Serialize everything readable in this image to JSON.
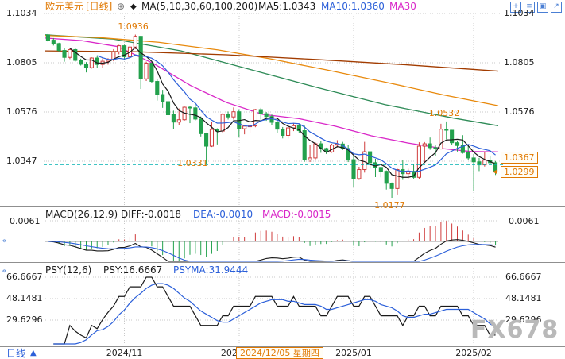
{
  "header": {
    "symbol": "欧元美元",
    "period": "[日线]",
    "ma_group": "MA(5,10,30,60,100,200)",
    "ma5": "MA5:1.0343",
    "ma10": "MA10:1.0360",
    "ma30": "MA30"
  },
  "icons": {
    "plus_circle": "⊕",
    "diamond": "◆",
    "zoom": "+",
    "list": "≡",
    "grid": "▣",
    "expand": "↗",
    "collapse": "«",
    "dropdown_up": "▲",
    "price_arrow": "◂"
  },
  "main_chart": {
    "left_axis": [
      "1.1034",
      "1.0805",
      "1.0576",
      "1.0347"
    ],
    "right_axis": [
      "1.1034",
      "1.0805",
      "1.0576"
    ],
    "badge_upper": "1.0367",
    "badge_lower": "1.0299"
  },
  "macd_panel": {
    "title": "MACD(26,12,9)",
    "diff": "DIFF:-0.0018",
    "dea": "DEA:-0.0010",
    "macd": "MACD:-0.0015",
    "axis": "0.0061"
  },
  "psy_panel": {
    "title": "PSY(12,6)",
    "psy": "PSY:16.6667",
    "psyma": "PSYMA:31.9444",
    "axis": [
      "66.6667",
      "48.1481",
      "29.6296"
    ]
  },
  "bottom": {
    "period": "日线",
    "tooltip": "2024/12/05 星期四"
  },
  "watermark": "FX678",
  "colors": {
    "up": "#cf3b3b",
    "down": "#23a14d",
    "grid": "#c9c9c9",
    "separator": "#8f8f8f",
    "ref_line": "#00b0b0",
    "orange": "#e07800",
    "blue": "#2b5fd9",
    "magenta": "#d927c8",
    "diff": "#1a1a1a",
    "dea": "#2b5fd9",
    "psy": "#1a1a1a",
    "psyma": "#2b5fd9"
  },
  "chart_data": {
    "type": "candlestick",
    "title": "欧元美元 日线 (EUR/USD Daily)",
    "price_gridlines": [
      1.1034,
      1.0805,
      1.0576,
      1.0347
    ],
    "reference_line": 1.0331,
    "last_price": 1.0299,
    "annotations": [
      {
        "text": "1.0936",
        "index": 16,
        "price": 1.0936,
        "position": "above"
      },
      {
        "text": "1.0532",
        "index": 73,
        "price": 1.0532,
        "position": "above"
      },
      {
        "text": "1.0177",
        "index": 63,
        "price": 1.0177,
        "position": "below"
      },
      {
        "text": "1.0331",
        "frac": 0.33,
        "price": 1.0331,
        "position": "line"
      }
    ],
    "x_ticks": [
      {
        "label": "2024/11",
        "index": 14
      },
      {
        "label": "2024/12",
        "index": 35
      },
      {
        "label": "2025/01",
        "index": 56
      },
      {
        "label": "2025/02",
        "index": 78
      }
    ],
    "candles": [
      [
        1.0935,
        1.094,
        1.0901,
        1.091
      ],
      [
        1.091,
        1.092,
        1.0885,
        1.0894
      ],
      [
        1.0894,
        1.0898,
        1.0855,
        1.0862
      ],
      [
        1.0862,
        1.0872,
        1.081,
        1.083
      ],
      [
        1.083,
        1.087,
        1.0822,
        1.0866
      ],
      [
        1.0866,
        1.0872,
        1.081,
        1.0816
      ],
      [
        1.0816,
        1.0824,
        1.0792,
        1.0798
      ],
      [
        1.0798,
        1.0808,
        1.076,
        1.0782
      ],
      [
        1.0782,
        1.083,
        1.0778,
        1.0827
      ],
      [
        1.0827,
        1.0839,
        1.078,
        1.0797
      ],
      [
        1.0797,
        1.0826,
        1.078,
        1.0812
      ],
      [
        1.0812,
        1.0826,
        1.0796,
        1.0818
      ],
      [
        1.0818,
        1.0868,
        1.0812,
        1.0856
      ],
      [
        1.0856,
        1.0888,
        1.0844,
        1.0884
      ],
      [
        1.0884,
        1.0888,
        1.082,
        1.0833
      ],
      [
        1.0833,
        1.0887,
        1.083,
        1.0878
      ],
      [
        1.0878,
        1.0936,
        1.0868,
        1.0928
      ],
      [
        1.0928,
        1.093,
        1.0683,
        1.073
      ],
      [
        1.073,
        1.081,
        1.072,
        1.0803
      ],
      [
        1.0803,
        1.0806,
        1.071,
        1.0718
      ],
      [
        1.0718,
        1.0728,
        1.0629,
        1.0657
      ],
      [
        1.0657,
        1.0679,
        1.0595,
        1.0624
      ],
      [
        1.0624,
        1.0655,
        1.0555,
        1.0563
      ],
      [
        1.0563,
        1.0582,
        1.0497,
        1.0529
      ],
      [
        1.0529,
        1.0592,
        1.0516,
        1.054
      ],
      [
        1.054,
        1.0601,
        1.0536,
        1.0598
      ],
      [
        1.0598,
        1.0603,
        1.0524,
        1.0595
      ],
      [
        1.0595,
        1.061,
        1.0537,
        1.0543
      ],
      [
        1.0543,
        1.0555,
        1.0462,
        1.0475
      ],
      [
        1.0475,
        1.048,
        1.0332,
        1.0417
      ],
      [
        1.0417,
        1.053,
        1.0413,
        1.0495
      ],
      [
        1.0495,
        1.05,
        1.0425,
        1.0487
      ],
      [
        1.0487,
        1.057,
        1.048,
        1.0565
      ],
      [
        1.0565,
        1.0578,
        1.0541,
        1.0553
      ],
      [
        1.0553,
        1.0597,
        1.0541,
        1.0577
      ],
      [
        1.0577,
        1.0588,
        1.0461,
        1.0498
      ],
      [
        1.0498,
        1.0514,
        1.0472,
        1.051
      ],
      [
        1.051,
        1.0544,
        1.0479,
        1.0511
      ],
      [
        1.0511,
        1.059,
        1.0505,
        1.0587
      ],
      [
        1.0587,
        1.0595,
        1.0541,
        1.0568
      ],
      [
        1.0568,
        1.0576,
        1.0535,
        1.0555
      ],
      [
        1.0555,
        1.0564,
        1.0516,
        1.0528
      ],
      [
        1.0528,
        1.0539,
        1.048,
        1.0496
      ],
      [
        1.0496,
        1.0506,
        1.0453,
        1.0467
      ],
      [
        1.0467,
        1.0514,
        1.0452,
        1.0502
      ],
      [
        1.0502,
        1.0525,
        1.0487,
        1.0512
      ],
      [
        1.0512,
        1.0521,
        1.048,
        1.0489
      ],
      [
        1.0489,
        1.0512,
        1.0344,
        1.0353
      ],
      [
        1.0353,
        1.0422,
        1.0343,
        1.0362
      ],
      [
        1.0362,
        1.0434,
        1.0355,
        1.0428
      ],
      [
        1.0428,
        1.044,
        1.0386,
        1.0406
      ],
      [
        1.0406,
        1.041,
        1.038,
        1.039
      ],
      [
        1.039,
        1.0428,
        1.0386,
        1.0422
      ],
      [
        1.0422,
        1.0445,
        1.0411,
        1.0427
      ],
      [
        1.0427,
        1.0437,
        1.0399,
        1.0406
      ],
      [
        1.0406,
        1.0421,
        1.0343,
        1.0354
      ],
      [
        1.0354,
        1.0374,
        1.0226,
        1.0266
      ],
      [
        1.0266,
        1.0321,
        1.026,
        1.0308
      ],
      [
        1.0308,
        1.0437,
        1.0294,
        1.0391
      ],
      [
        1.0391,
        1.0393,
        1.0312,
        1.034
      ],
      [
        1.034,
        1.0358,
        1.0273,
        1.0318
      ],
      [
        1.0318,
        1.032,
        1.0272,
        1.03
      ],
      [
        1.03,
        1.0304,
        1.0215,
        1.0244
      ],
      [
        1.0244,
        1.0248,
        1.0177,
        1.022
      ],
      [
        1.022,
        1.0312,
        1.0192,
        1.0308
      ],
      [
        1.0308,
        1.0354,
        1.026,
        1.0289
      ],
      [
        1.0289,
        1.0312,
        1.0262,
        1.03
      ],
      [
        1.03,
        1.0332,
        1.0266,
        1.0272
      ],
      [
        1.0272,
        1.0435,
        1.0265,
        1.0417
      ],
      [
        1.0417,
        1.0436,
        1.0341,
        1.0428
      ],
      [
        1.0428,
        1.0457,
        1.04,
        1.041
      ],
      [
        1.041,
        1.042,
        1.037,
        1.0404
      ],
      [
        1.0404,
        1.0521,
        1.0402,
        1.0496
      ],
      [
        1.0496,
        1.0532,
        1.0449,
        1.0491
      ],
      [
        1.0491,
        1.0493,
        1.0421,
        1.0433
      ],
      [
        1.0433,
        1.0443,
        1.0392,
        1.042
      ],
      [
        1.042,
        1.0468,
        1.0382,
        1.0387
      ],
      [
        1.0387,
        1.0421,
        1.0351,
        1.0362
      ],
      [
        1.0362,
        1.038,
        1.021,
        1.0344
      ],
      [
        1.0344,
        1.0362,
        1.0301,
        1.033
      ],
      [
        1.033,
        1.039,
        1.0322,
        1.0352
      ],
      [
        1.0352,
        1.0371,
        1.033,
        1.034
      ],
      [
        1.034,
        1.0348,
        1.0283,
        1.0299
      ]
    ],
    "overlays": {
      "ma_fast": [
        {
          "name": "MA5",
          "window": 5,
          "color": "#1a1a1a"
        },
        {
          "name": "MA10",
          "window": 10,
          "color": "#2b5fd9"
        }
      ],
      "ma_slow": [
        {
          "name": "MA30",
          "color": "#d927c8",
          "points": [
            [
              0,
              1.092
            ],
            [
              0.08,
              1.0908
            ],
            [
              0.16,
              1.088
            ],
            [
              0.24,
              1.08
            ],
            [
              0.32,
              1.07
            ],
            [
              0.4,
              1.062
            ],
            [
              0.48,
              1.0565
            ],
            [
              0.56,
              1.0545
            ],
            [
              0.64,
              1.051
            ],
            [
              0.72,
              1.0465
            ],
            [
              0.8,
              1.0432
            ],
            [
              0.88,
              1.0405
            ],
            [
              0.94,
              1.0392
            ],
            [
              1,
              1.039
            ]
          ]
        },
        {
          "name": "MA60",
          "color": "#2e8b57",
          "points": [
            [
              0,
              1.0935
            ],
            [
              0.15,
              1.0915
            ],
            [
              0.3,
              1.086
            ],
            [
              0.45,
              1.0775
            ],
            [
              0.6,
              1.069
            ],
            [
              0.75,
              1.061
            ],
            [
              0.9,
              1.0548
            ],
            [
              1,
              1.0512
            ]
          ]
        },
        {
          "name": "MA100",
          "color": "#e8890c",
          "points": [
            [
              0,
              1.0932
            ],
            [
              0.12,
              1.0922
            ],
            [
              0.25,
              1.09
            ],
            [
              0.38,
              1.0865
            ],
            [
              0.5,
              1.0822
            ],
            [
              0.62,
              1.0772
            ],
            [
              0.75,
              1.0715
            ],
            [
              0.88,
              1.0655
            ],
            [
              1,
              1.0605
            ]
          ]
        },
        {
          "name": "MA200",
          "color": "#a23c00",
          "points": [
            [
              0,
              1.086
            ],
            [
              0.2,
              1.0856
            ],
            [
              0.4,
              1.0842
            ],
            [
              0.6,
              1.082
            ],
            [
              0.8,
              1.0795
            ],
            [
              1,
              1.0766
            ]
          ]
        }
      ]
    },
    "indicators": {
      "macd": {
        "params": [
          26,
          12,
          9
        ],
        "diff": -0.0018,
        "dea": -0.001,
        "macd": -0.0015,
        "axis_max": 0.0061
      },
      "psy": {
        "params": [
          12,
          6
        ],
        "psy": 16.6667,
        "psyma": 31.9444,
        "gridlines": [
          66.6667,
          48.1481,
          29.6296
        ]
      }
    }
  }
}
